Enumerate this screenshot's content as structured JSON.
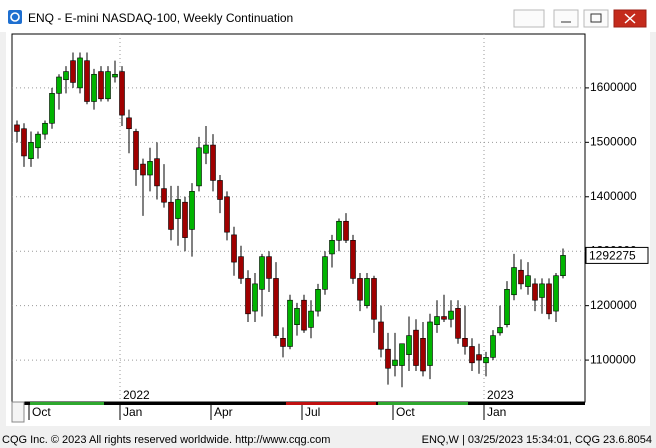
{
  "chart_data": {
    "type": "candlestick",
    "title": "ENQ - E-mini NASDAQ-100, Weekly Continuation",
    "footer_left": "CQG Inc. © 2023 All rights reserved worldwide. http://www.cqg.com",
    "footer_right": "ENQ,W | 03/25/2023 15:34:01, CQG 23.6.8054",
    "categories": [
      null,
      null,
      "Oct",
      null,
      null,
      null,
      null,
      null,
      null,
      null,
      null,
      null,
      null,
      null,
      null,
      "Jan",
      null,
      null,
      null,
      null,
      null,
      null,
      null,
      null,
      null,
      null,
      null,
      null,
      "Apr",
      null,
      null,
      null,
      null,
      null,
      null,
      null,
      null,
      null,
      null,
      null,
      null,
      "Jul",
      null,
      null,
      null,
      null,
      null,
      null,
      null,
      null,
      null,
      null,
      null,
      null,
      "Oct",
      null,
      null,
      null,
      null,
      null,
      null,
      null,
      null,
      null,
      null,
      null,
      null,
      "Jan",
      null,
      null,
      null,
      null,
      null,
      null,
      null,
      null,
      null,
      null,
      null
    ],
    "years": [
      null,
      null,
      null,
      null,
      null,
      null,
      null,
      null,
      null,
      null,
      null,
      null,
      null,
      null,
      null,
      "2022",
      null,
      null,
      null,
      null,
      null,
      null,
      null,
      null,
      null,
      null,
      null,
      null,
      null,
      null,
      null,
      null,
      null,
      null,
      null,
      null,
      null,
      null,
      null,
      null,
      null,
      null,
      null,
      null,
      null,
      null,
      null,
      null,
      null,
      null,
      null,
      null,
      null,
      null,
      null,
      null,
      null,
      null,
      null,
      null,
      null,
      null,
      null,
      null,
      null,
      null,
      null,
      "2023",
      null,
      null,
      null,
      null,
      null,
      null,
      null,
      null,
      null,
      null,
      null
    ],
    "open": [
      1532000,
      1525000,
      1470000,
      1490000,
      1515000,
      1535000,
      1590000,
      1615000,
      1650000,
      1600000,
      1650000,
      1575000,
      1630000,
      1580000,
      1620000,
      1630000,
      1545000,
      1520000,
      1460000,
      1440000,
      1470000,
      1415000,
      1390000,
      1360000,
      1390000,
      1340000,
      1420000,
      1480000,
      1495000,
      1430000,
      1400000,
      1330000,
      1290000,
      1250000,
      1190000,
      1230000,
      1290000,
      1250000,
      1140000,
      1125000,
      1165000,
      1210000,
      1160000,
      1190000,
      1230000,
      1295000,
      1320000,
      1355000,
      1320000,
      1250000,
      1200000,
      1250000,
      1170000,
      1120000,
      1090000,
      1090000,
      1110000,
      1155000,
      1140000,
      1090000,
      1165000,
      1180000,
      1175000,
      1195000,
      1140000,
      1125000,
      1110000,
      1095000,
      1105000,
      1150000,
      1165000,
      1220000,
      1265000,
      1235000,
      1240000,
      1215000,
      1240000,
      1190000,
      1255000
    ],
    "high": [
      1540000,
      1535000,
      1520000,
      1520000,
      1540000,
      1600000,
      1625000,
      1640000,
      1665000,
      1665000,
      1665000,
      1635000,
      1640000,
      1640000,
      1650000,
      1640000,
      1560000,
      1525000,
      1470000,
      1490000,
      1500000,
      1460000,
      1420000,
      1420000,
      1400000,
      1425000,
      1510000,
      1530000,
      1515000,
      1440000,
      1410000,
      1345000,
      1310000,
      1265000,
      1260000,
      1295000,
      1300000,
      1280000,
      1160000,
      1220000,
      1205000,
      1220000,
      1210000,
      1240000,
      1300000,
      1330000,
      1360000,
      1370000,
      1330000,
      1260000,
      1260000,
      1255000,
      1200000,
      1150000,
      1150000,
      1130000,
      1180000,
      1175000,
      1170000,
      1185000,
      1210000,
      1220000,
      1210000,
      1210000,
      1200000,
      1140000,
      1130000,
      1115000,
      1155000,
      1200000,
      1245000,
      1295000,
      1285000,
      1280000,
      1250000,
      1250000,
      1250000,
      1260000,
      1305000
    ],
    "low": [
      1500000,
      1455000,
      1455000,
      1470000,
      1505000,
      1525000,
      1560000,
      1590000,
      1600000,
      1590000,
      1570000,
      1560000,
      1575000,
      1575000,
      1610000,
      1530000,
      1480000,
      1420000,
      1365000,
      1410000,
      1395000,
      1380000,
      1320000,
      1310000,
      1300000,
      1290000,
      1410000,
      1460000,
      1410000,
      1370000,
      1320000,
      1255000,
      1240000,
      1170000,
      1170000,
      1180000,
      1225000,
      1140000,
      1105000,
      1120000,
      1145000,
      1150000,
      1140000,
      1180000,
      1220000,
      1270000,
      1300000,
      1315000,
      1240000,
      1190000,
      1195000,
      1150000,
      1105000,
      1055000,
      1070000,
      1050000,
      1080000,
      1080000,
      1070000,
      1065000,
      1150000,
      1170000,
      1160000,
      1130000,
      1110000,
      1080000,
      1075000,
      1070000,
      1100000,
      1145000,
      1160000,
      1210000,
      1230000,
      1220000,
      1190000,
      1185000,
      1175000,
      1170000,
      1250000
    ],
    "close": [
      1520000,
      1475000,
      1500000,
      1515000,
      1535000,
      1590000,
      1620000,
      1630000,
      1610000,
      1655000,
      1575000,
      1625000,
      1580000,
      1630000,
      1625000,
      1550000,
      1525000,
      1450000,
      1440000,
      1465000,
      1420000,
      1390000,
      1340000,
      1395000,
      1325000,
      1410000,
      1490000,
      1495000,
      1430000,
      1395000,
      1335000,
      1280000,
      1250000,
      1185000,
      1240000,
      1290000,
      1250000,
      1145000,
      1125000,
      1210000,
      1195000,
      1155000,
      1190000,
      1230000,
      1290000,
      1320000,
      1355000,
      1320000,
      1250000,
      1210000,
      1250000,
      1175000,
      1120000,
      1085000,
      1100000,
      1130000,
      1145000,
      1090000,
      1080000,
      1170000,
      1180000,
      1175000,
      1190000,
      1140000,
      1125000,
      1095000,
      1100000,
      1105000,
      1145000,
      1160000,
      1230000,
      1270000,
      1240000,
      1255000,
      1210000,
      1240000,
      1185000,
      1255000,
      1292275
    ],
    "up_color": "#00b400",
    "down_color": "#a00000",
    "ylim": [
      1023000,
      1699000
    ],
    "yticks": [
      1100000,
      1200000,
      1300000,
      1400000,
      1500000,
      1600000
    ],
    "grid": true
  }
}
